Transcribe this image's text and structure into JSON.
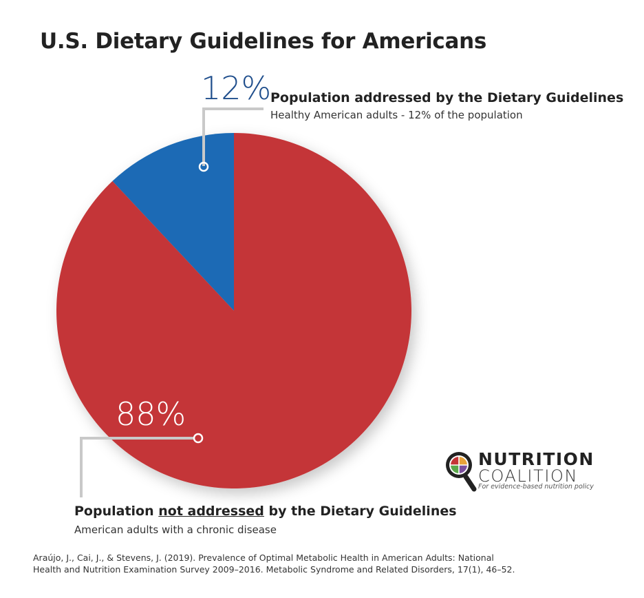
{
  "chart_data": {
    "type": "pie",
    "title": "U.S. Dietary Guidelines for Americans",
    "slices": [
      {
        "value": 12,
        "value_label": "12%",
        "color": "#1A6BB5",
        "label": "Population addressed by the Dietary Guidelines",
        "sublabel": "Healthy American adults - 12% of the population"
      },
      {
        "value": 88,
        "value_label": "88%",
        "color": "#C43537",
        "label_pre": "Population ",
        "label_emph": "not addressed",
        "label_post": " by the Dietary Guidelines",
        "sublabel": "American adults with a chronic disease"
      }
    ],
    "pct_text_color": "#1F4E8C"
  },
  "citation": {
    "line1": "Araújo, J., Cai, J., & Stevens, J. (2019). Prevalence of Optimal Metabolic Health in American Adults: National",
    "line2": "Health and Nutrition Examination Survey 2009–2016. Metabolic Syndrome and Related Disorders, 17(1), 46–52."
  },
  "logo": {
    "line1": "NUTRITION",
    "line2": "COALITION",
    "tagline": "For evidence-based nutrition policy",
    "icon": "magnifier-plate-icon"
  }
}
